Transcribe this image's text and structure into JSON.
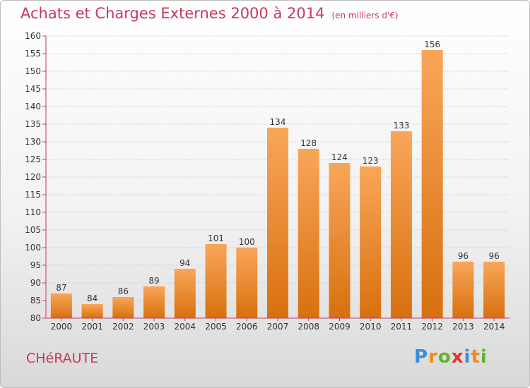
{
  "header": {
    "title": "Achats et Charges Externes 2000 à 2014",
    "unit": "(en milliers d'€)"
  },
  "footer": {
    "commune": "CHéRAUTE",
    "logo_letters": [
      "P",
      "r",
      "o",
      "x",
      "i",
      "t",
      "i"
    ],
    "logo_colors": [
      "#3a8fd8",
      "#f08a1c",
      "#63b42c",
      "#e0342c",
      "#3a8fd8",
      "#f08a1c",
      "#63b42c"
    ]
  },
  "colors": {
    "bar_top": "#f9a65a",
    "bar_bottom": "#d8700e",
    "axis": "#c8385a",
    "text": "#c8385a"
  },
  "chart_data": {
    "type": "bar",
    "categories": [
      "2000",
      "2001",
      "2002",
      "2003",
      "2004",
      "2005",
      "2006",
      "2007",
      "2008",
      "2009",
      "2010",
      "2011",
      "2012",
      "2013",
      "2014"
    ],
    "values": [
      87,
      84,
      86,
      89,
      94,
      101,
      100,
      134,
      128,
      124,
      123,
      133,
      156,
      96,
      96
    ],
    "title": "Achats et Charges Externes 2000 à 2014",
    "xlabel": "",
    "ylabel": "",
    "ylim": [
      80,
      160
    ],
    "yticks": [
      80,
      85,
      90,
      95,
      100,
      105,
      110,
      115,
      120,
      125,
      130,
      135,
      140,
      145,
      150,
      155,
      160
    ],
    "grid": "horizontal",
    "legend": "none"
  }
}
